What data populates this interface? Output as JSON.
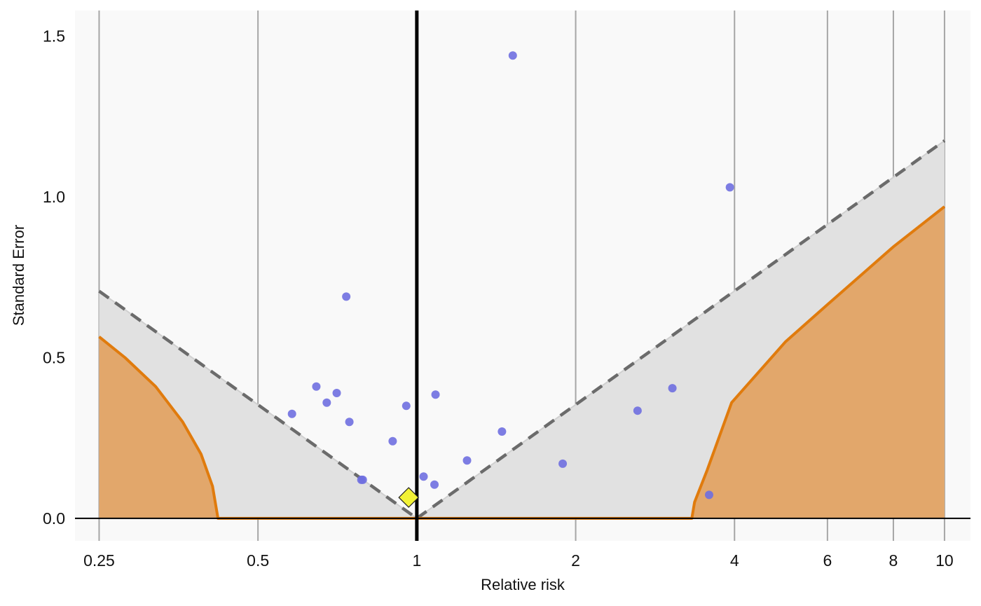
{
  "chart_data": {
    "type": "scatter",
    "title": "",
    "xlabel": "Relative risk",
    "ylabel": "Standard Error",
    "x_scale": "log",
    "xlim": [
      0.225,
      11.2
    ],
    "ylim": [
      -0.07,
      1.58
    ],
    "x_ticks": [
      0.25,
      0.5,
      1,
      2,
      4,
      6,
      8,
      10
    ],
    "x_tick_labels": [
      "0.25",
      "0.5",
      "1",
      "2",
      "4",
      "6",
      "8",
      "10"
    ],
    "y_ticks": [
      0,
      0.5,
      1,
      1.5
    ],
    "y_tick_labels": [
      "0.0",
      "0.5",
      "1.0",
      "1.5"
    ],
    "grid": "vertical",
    "legend": "none",
    "reference_line_x": 1,
    "pooled_estimate": {
      "x": 0.965,
      "y": 0.065
    },
    "funnel_bounds": {
      "left": [
        {
          "x": 0.25,
          "y": 0.707
        },
        {
          "x": 1,
          "y": 0
        }
      ],
      "right": [
        {
          "x": 1,
          "y": 0
        },
        {
          "x": 10,
          "y": 1.175
        }
      ]
    },
    "significance_contour": {
      "left": [
        {
          "x": 0.25,
          "y": 0.565
        },
        {
          "x": 0.28,
          "y": 0.5
        },
        {
          "x": 0.32,
          "y": 0.41
        },
        {
          "x": 0.36,
          "y": 0.3
        },
        {
          "x": 0.39,
          "y": 0.2
        },
        {
          "x": 0.41,
          "y": 0.1
        },
        {
          "x": 0.42,
          "y": 0
        }
      ],
      "right": [
        {
          "x": 3.32,
          "y": 0
        },
        {
          "x": 3.36,
          "y": 0.05
        },
        {
          "x": 3.55,
          "y": 0.15
        },
        {
          "x": 3.95,
          "y": 0.36
        },
        {
          "x": 5.0,
          "y": 0.55
        },
        {
          "x": 6.0,
          "y": 0.665
        },
        {
          "x": 8.0,
          "y": 0.845
        },
        {
          "x": 10.0,
          "y": 0.97
        }
      ]
    },
    "points": [
      {
        "x": 1.52,
        "y": 1.44
      },
      {
        "x": 3.92,
        "y": 1.03
      },
      {
        "x": 0.735,
        "y": 0.69
      },
      {
        "x": 0.645,
        "y": 0.41
      },
      {
        "x": 0.705,
        "y": 0.39
      },
      {
        "x": 0.675,
        "y": 0.36
      },
      {
        "x": 0.58,
        "y": 0.325
      },
      {
        "x": 0.745,
        "y": 0.3
      },
      {
        "x": 0.955,
        "y": 0.35
      },
      {
        "x": 1.085,
        "y": 0.385
      },
      {
        "x": 0.9,
        "y": 0.24
      },
      {
        "x": 1.45,
        "y": 0.27
      },
      {
        "x": 1.245,
        "y": 0.18
      },
      {
        "x": 1.89,
        "y": 0.17
      },
      {
        "x": 1.03,
        "y": 0.13
      },
      {
        "x": 1.08,
        "y": 0.105
      },
      {
        "x": 0.785,
        "y": 0.12
      },
      {
        "x": 0.79,
        "y": 0.12
      },
      {
        "x": 2.62,
        "y": 0.335
      },
      {
        "x": 3.05,
        "y": 0.405
      },
      {
        "x": 3.58,
        "y": 0.073
      }
    ],
    "colors": {
      "panel": "#f9f9f9",
      "funnel_fill": "#e1e1e1",
      "funnel_dash": "#6b6b6b",
      "contour_line": "#e07b0d",
      "contour_fill": "#e2a76b",
      "point": "#6f6fe0",
      "pooled": "#f2f236",
      "gridline": "#a6a6a6",
      "reference": "#000000"
    }
  }
}
